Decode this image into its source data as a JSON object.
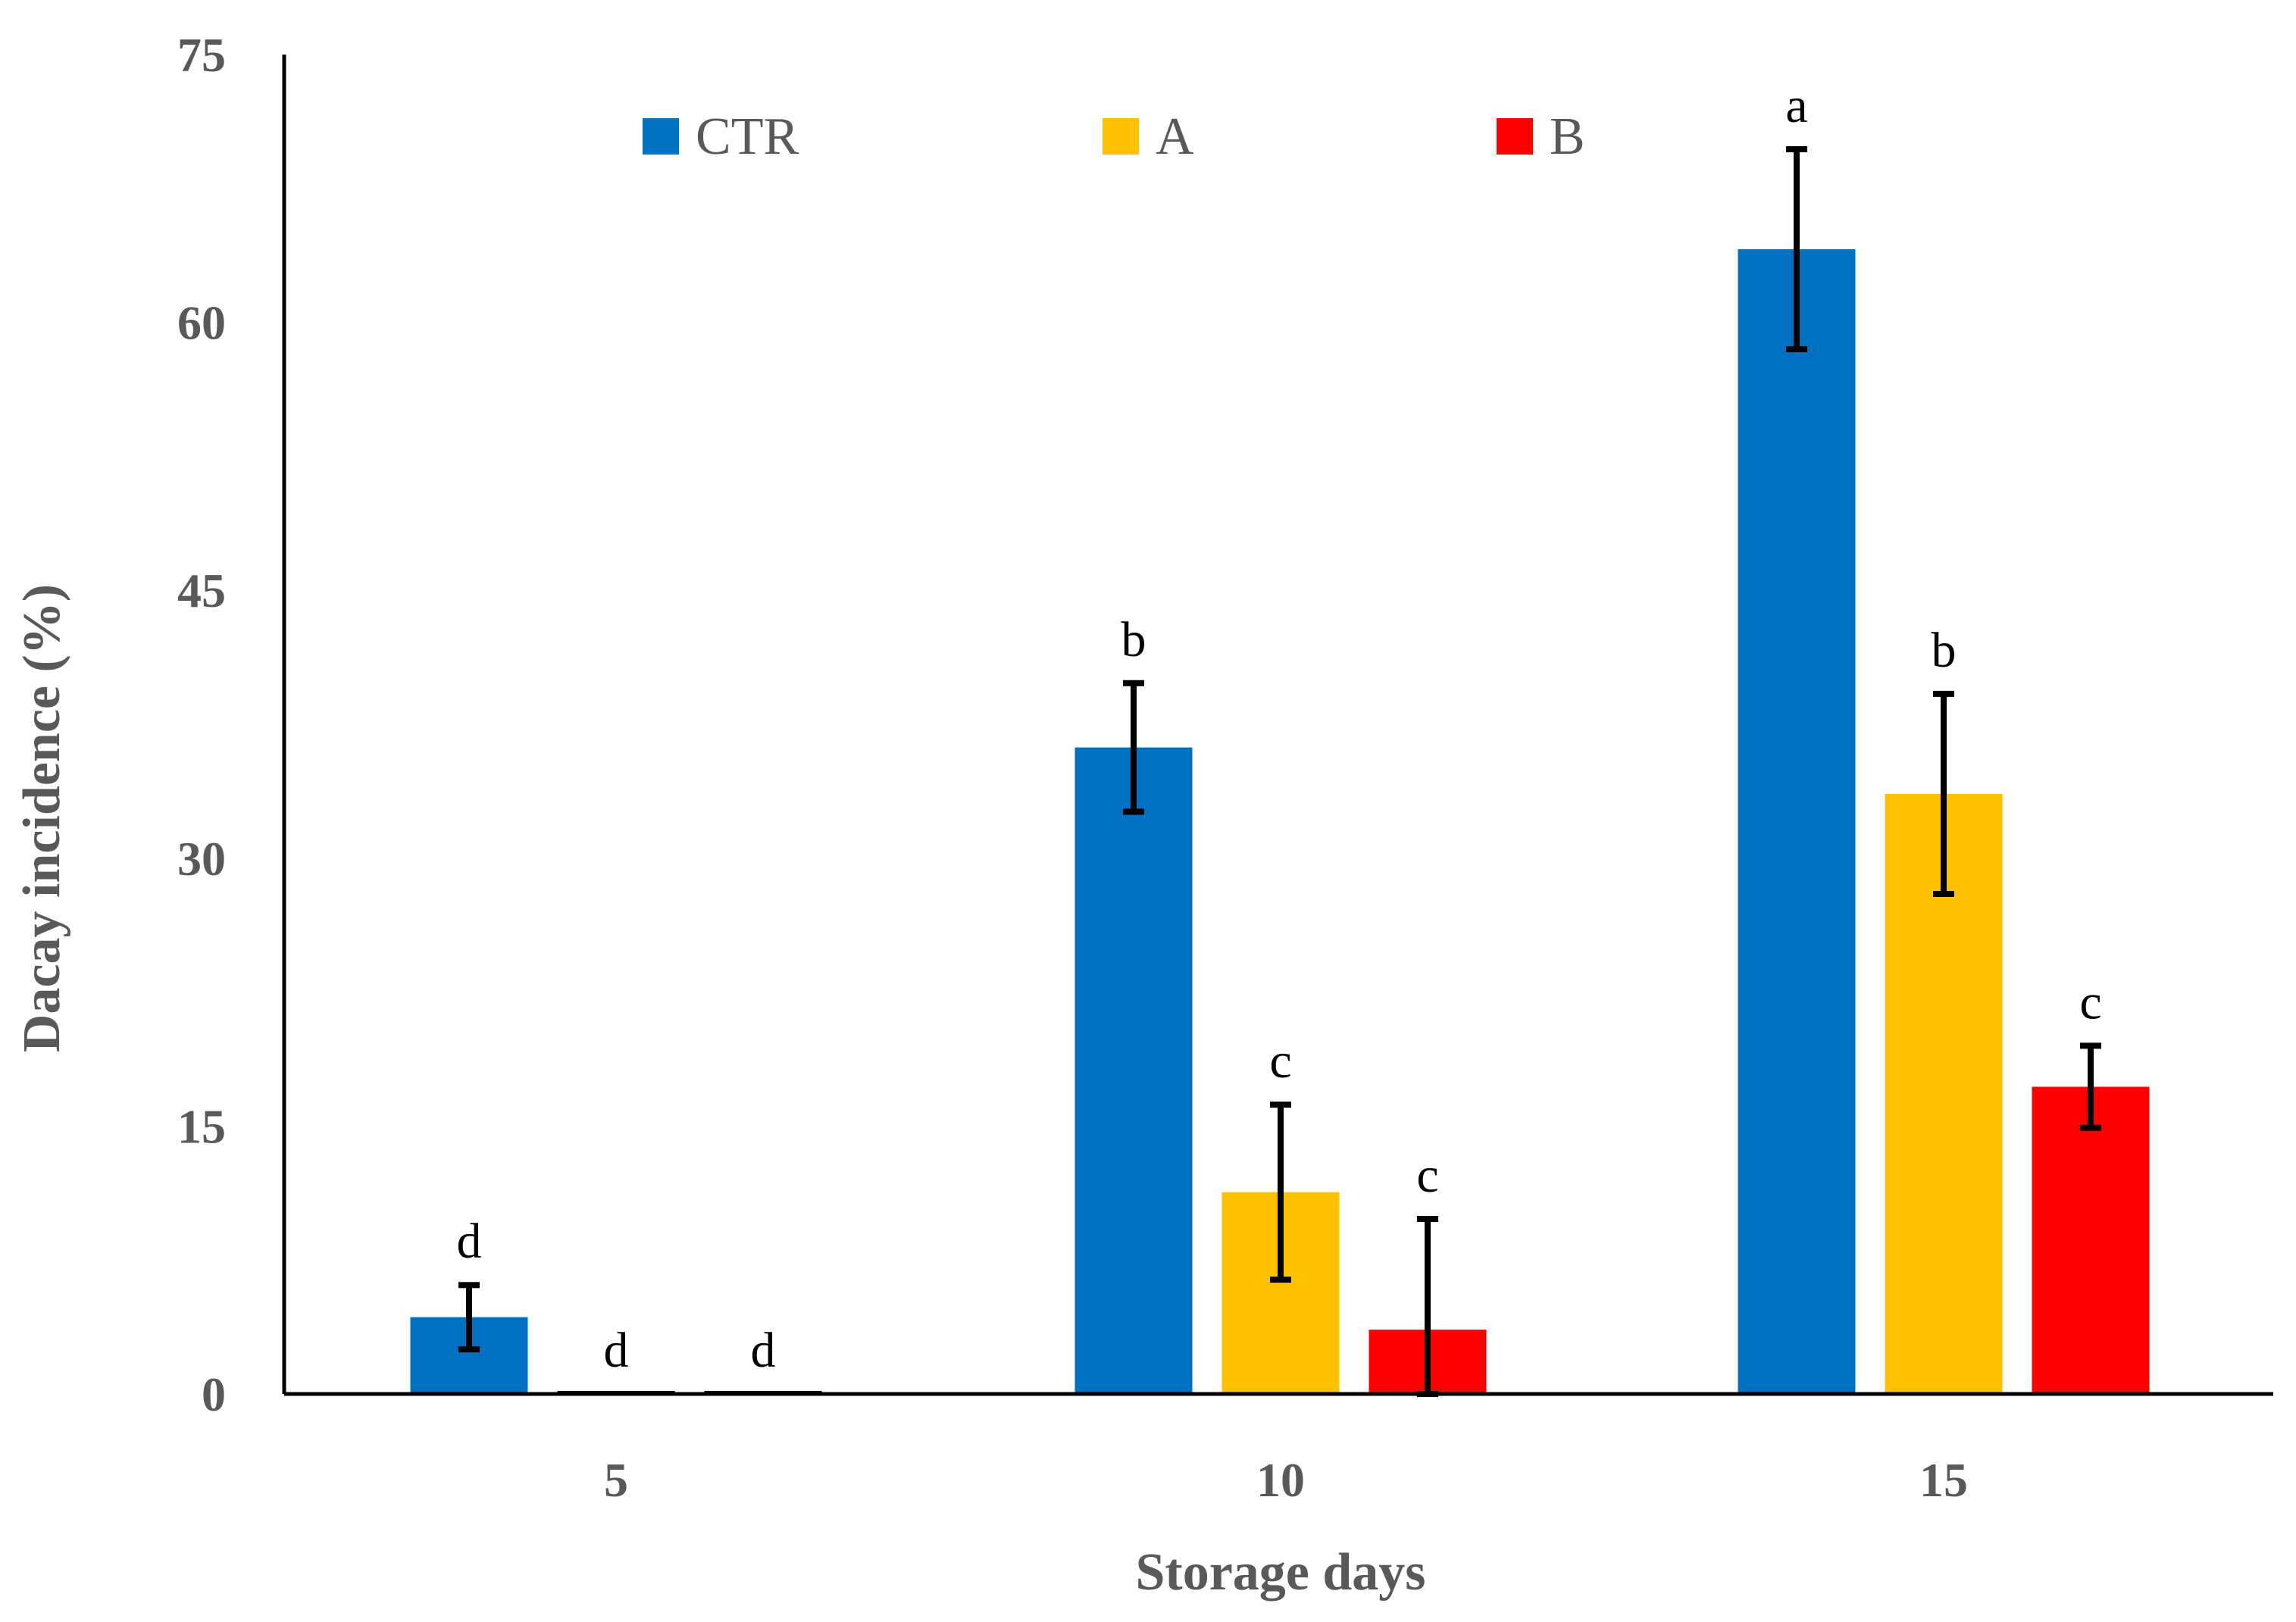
{
  "chart_data": {
    "type": "bar",
    "title": "",
    "xlabel": "Storage days",
    "ylabel": "Dacay incidence (%)",
    "categories": [
      "5",
      "10",
      "15"
    ],
    "ylim": [
      0,
      75
    ],
    "yticks": [
      "0",
      "15",
      "30",
      "45",
      "60",
      "75"
    ],
    "grid": false,
    "legend_position": "top",
    "series": [
      {
        "name": "CTR",
        "color": "#0070C0",
        "values": [
          4.3,
          36.2,
          64.1
        ],
        "errors": [
          1.8,
          3.6,
          5.6
        ],
        "letters": [
          "d",
          "b",
          "a"
        ]
      },
      {
        "name": "A",
        "color": "#FFC000",
        "values": [
          0,
          11.3,
          33.6
        ],
        "errors": [
          0,
          4.9,
          5.6
        ],
        "letters": [
          "d",
          "c",
          "b"
        ]
      },
      {
        "name": "B",
        "color": "#FF0000",
        "values": [
          0,
          3.6,
          17.2
        ],
        "errors": [
          0,
          6.2,
          2.3
        ],
        "letters": [
          "d",
          "c",
          "c"
        ]
      }
    ]
  }
}
